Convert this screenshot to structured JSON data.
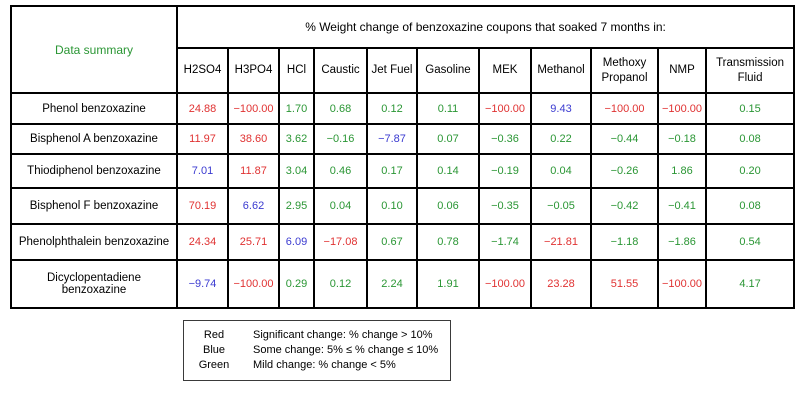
{
  "colors": {
    "red": "#e03232",
    "blue": "#3a3ad0",
    "green": "#2a9634",
    "label_green": "#2a9634"
  },
  "table": {
    "corner_label": "Data summary",
    "title": "% Weight change of benzoxazine coupons that soaked 7 months in:",
    "columns": [
      "H2SO4",
      "H3PO4",
      "HCl",
      "Caustic",
      "Jet Fuel",
      "Gasoline",
      "MEK",
      "Methanol",
      "Methoxy Propanol",
      "NMP",
      "Transmission Fluid"
    ],
    "rows": [
      {
        "label": "Phenol benzoxazine",
        "values": [
          "24.88",
          "−100.00",
          "1.70",
          "0.68",
          "0.12",
          "0.11",
          "−100.00",
          "9.43",
          "−100.00",
          "−100.00",
          "0.15"
        ],
        "colors": [
          "red",
          "red",
          "green",
          "green",
          "green",
          "green",
          "red",
          "blue",
          "red",
          "red",
          "green"
        ]
      },
      {
        "label": "Bisphenol A benzoxazine",
        "values": [
          "11.97",
          "38.60",
          "3.62",
          "−0.16",
          "−7.87",
          "0.07",
          "−0.36",
          "0.22",
          "−0.44",
          "−0.18",
          "0.08"
        ],
        "colors": [
          "red",
          "red",
          "green",
          "green",
          "blue",
          "green",
          "green",
          "green",
          "green",
          "green",
          "green"
        ]
      },
      {
        "label": "Thiodiphenol benzoxazine",
        "values": [
          "7.01",
          "11.87",
          "3.04",
          "0.46",
          "0.17",
          "0.14",
          "−0.19",
          "0.04",
          "−0.26",
          "1.86",
          "0.20"
        ],
        "colors": [
          "blue",
          "red",
          "green",
          "green",
          "green",
          "green",
          "green",
          "green",
          "green",
          "green",
          "green"
        ]
      },
      {
        "label": "Bisphenol F benzoxazine",
        "values": [
          "70.19",
          "6.62",
          "2.95",
          "0.04",
          "0.10",
          "0.06",
          "−0.35",
          "−0.05",
          "−0.42",
          "−0.41",
          "0.08"
        ],
        "colors": [
          "red",
          "blue",
          "green",
          "green",
          "green",
          "green",
          "green",
          "green",
          "green",
          "green",
          "green"
        ]
      },
      {
        "label": "Phenolphthalein benzoxazine",
        "values": [
          "24.34",
          "25.71",
          "6.09",
          "−17.08",
          "0.67",
          "0.78",
          "−1.74",
          "−21.81",
          "−1.18",
          "−1.86",
          "0.54"
        ],
        "colors": [
          "red",
          "red",
          "blue",
          "red",
          "green",
          "green",
          "green",
          "red",
          "green",
          "green",
          "green"
        ]
      },
      {
        "label": "Dicyclopentadiene benzoxazine",
        "values": [
          "−9.74",
          "−100.00",
          "0.29",
          "0.12",
          "2.24",
          "1.91",
          "−100.00",
          "23.28",
          "51.55",
          "−100.00",
          "4.17"
        ],
        "colors": [
          "blue",
          "red",
          "green",
          "green",
          "green",
          "green",
          "red",
          "red",
          "red",
          "red",
          "green"
        ]
      }
    ]
  },
  "legend": {
    "entries": [
      {
        "label": "Red",
        "description": "Significant change:  % change > 10%"
      },
      {
        "label": "Blue",
        "description": "Some change: 5%  ≤ % change ≤ 10%"
      },
      {
        "label": "Green",
        "description": "Mild change:  % change < 5%"
      }
    ]
  },
  "chart_data": {
    "type": "table",
    "title": "% Weight change of benzoxazine coupons that soaked 7 months in:",
    "columns": [
      "H2SO4",
      "H3PO4",
      "HCl",
      "Caustic",
      "Jet Fuel",
      "Gasoline",
      "MEK",
      "Methanol",
      "Methoxy Propanol",
      "NMP",
      "Transmission Fluid"
    ],
    "row_labels": [
      "Phenol benzoxazine",
      "Bisphenol A benzoxazine",
      "Thiodiphenol benzoxazine",
      "Bisphenol F benzoxazine",
      "Phenolphthalein benzoxazine",
      "Dicyclopentadiene benzoxazine"
    ],
    "values": [
      [
        24.88,
        -100.0,
        1.7,
        0.68,
        0.12,
        0.11,
        -100.0,
        9.43,
        -100.0,
        -100.0,
        0.15
      ],
      [
        11.97,
        38.6,
        3.62,
        -0.16,
        -7.87,
        0.07,
        -0.36,
        0.22,
        -0.44,
        -0.18,
        0.08
      ],
      [
        7.01,
        11.87,
        3.04,
        0.46,
        0.17,
        0.14,
        -0.19,
        0.04,
        -0.26,
        1.86,
        0.2
      ],
      [
        70.19,
        6.62,
        2.95,
        0.04,
        0.1,
        0.06,
        -0.35,
        -0.05,
        -0.42,
        -0.41,
        0.08
      ],
      [
        24.34,
        25.71,
        6.09,
        -17.08,
        0.67,
        0.78,
        -1.74,
        -21.81,
        -1.18,
        -1.86,
        0.54
      ],
      [
        -9.74,
        -100.0,
        0.29,
        0.12,
        2.24,
        1.91,
        -100.0,
        23.28,
        51.55,
        -100.0,
        4.17
      ]
    ],
    "color_coding": {
      "red": "% change > 10%",
      "blue": "5% <= % change <= 10%",
      "green": "% change < 5%"
    },
    "legend_position": "bottom"
  }
}
